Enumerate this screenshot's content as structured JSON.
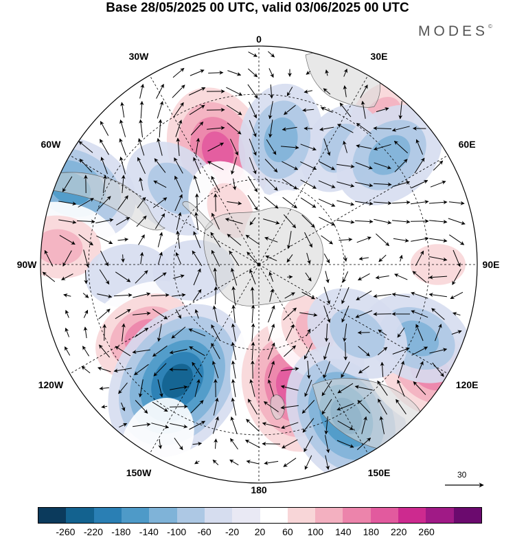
{
  "title": "Base 28/05/2025 00 UTC, valid 03/06/2025 00 UTC",
  "brand": "MODES",
  "brand_mark": "©",
  "longitude_labels": [
    {
      "text": "0",
      "bearing": 0
    },
    {
      "text": "30E",
      "bearing": 30
    },
    {
      "text": "60E",
      "bearing": 60
    },
    {
      "text": "90E",
      "bearing": 90
    },
    {
      "text": "120E",
      "bearing": 120
    },
    {
      "text": "150E",
      "bearing": 150
    },
    {
      "text": "180",
      "bearing": 180
    },
    {
      "text": "150W",
      "bearing": 210
    },
    {
      "text": "120W",
      "bearing": 240
    },
    {
      "text": "90W",
      "bearing": 270
    },
    {
      "text": "60W",
      "bearing": 300
    },
    {
      "text": "30W",
      "bearing": 330
    }
  ],
  "reference_vector": {
    "label": "30"
  },
  "colorbar": {
    "ticks": [
      "-260",
      "-220",
      "-180",
      "-140",
      "-100",
      "-60",
      "-20",
      "20",
      "60",
      "100",
      "140",
      "180",
      "220",
      "260"
    ],
    "colors": [
      "#0b3a5c",
      "#13628f",
      "#2a7fb4",
      "#4e9ac8",
      "#7fb3d8",
      "#adc8e4",
      "#d6ddef",
      "#e9e9f4",
      "#ffffff",
      "#f8d6d8",
      "#f3b0c0",
      "#ec84ab",
      "#e25a9e",
      "#cd2a8f",
      "#a01a86",
      "#6b0a6e"
    ]
  },
  "anomaly_centres": [
    {
      "lon": -20,
      "colat": 0.55,
      "value": 230
    },
    {
      "lon": 40,
      "colat": 0.88,
      "value": 120
    },
    {
      "lon": 35,
      "colat": 0.65,
      "value": -80
    },
    {
      "lon": 10,
      "colat": 0.58,
      "value": -120
    },
    {
      "lon": 50,
      "colat": 0.78,
      "value": -130
    },
    {
      "lon": -48,
      "colat": 0.52,
      "value": -110
    },
    {
      "lon": -68,
      "colat": 0.93,
      "value": -170
    },
    {
      "lon": 90,
      "colat": 0.82,
      "value": 90
    },
    {
      "lon": 78,
      "colat": 0.52,
      "value": 50
    },
    {
      "lon": -85,
      "colat": 0.92,
      "value": 140
    },
    {
      "lon": -95,
      "colat": 0.6,
      "value": -60
    },
    {
      "lon": -122,
      "colat": 0.62,
      "value": 170
    },
    {
      "lon": -145,
      "colat": 0.65,
      "value": -240
    },
    {
      "lon": 165,
      "colat": 0.58,
      "value": 230
    },
    {
      "lon": 140,
      "colat": 0.4,
      "value": 120
    },
    {
      "lon": 150,
      "colat": 0.8,
      "value": -200
    },
    {
      "lon": 122,
      "colat": 0.93,
      "value": 190
    },
    {
      "lon": 115,
      "colat": 0.8,
      "value": -120
    },
    {
      "lon": 125,
      "colat": 0.55,
      "value": -110
    },
    {
      "lon": -28,
      "colat": 0.28,
      "value": 100
    },
    {
      "lon": 30,
      "colat": 0.18,
      "value": 60
    },
    {
      "lon": -150,
      "colat": 0.93,
      "value": 70
    },
    {
      "lon": -95,
      "colat": 0.3,
      "value": -50
    }
  ]
}
